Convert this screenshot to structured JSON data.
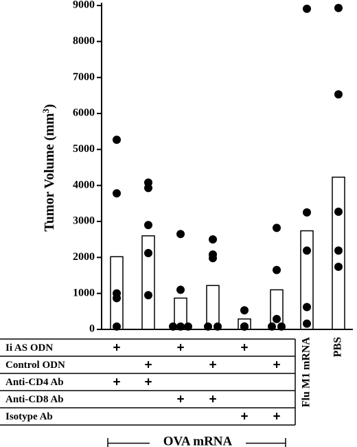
{
  "chart_data": {
    "type": "bar",
    "ylabel_main": "Tumor Volume (mm",
    "ylabel_sup": "3",
    "ylabel_close": ")",
    "ylim": [
      0,
      9000
    ],
    "yticks": [
      0,
      1000,
      2000,
      3000,
      4000,
      5000,
      6000,
      7000,
      8000,
      9000
    ],
    "groups": [
      {
        "bar": 2020,
        "points": [
          5270,
          3780,
          1000,
          870,
          80
        ]
      },
      {
        "bar": 2600,
        "points": [
          4080,
          3930,
          2900,
          2120,
          950
        ]
      },
      {
        "bar": 870,
        "points": [
          2650,
          1100,
          80,
          80,
          80
        ]
      },
      {
        "bar": 1220,
        "points": [
          2500,
          2080,
          1980,
          80,
          80
        ]
      },
      {
        "bar": 290,
        "points": [
          530,
          80,
          80,
          80,
          80
        ]
      },
      {
        "bar": 1100,
        "points": [
          2820,
          1650,
          290,
          80,
          80
        ]
      },
      {
        "bar": 2740,
        "points": [
          8910,
          3250,
          2190,
          620,
          160
        ]
      },
      {
        "bar": 4230,
        "points": [
          8930,
          6530,
          3270,
          2190,
          1740
        ]
      }
    ],
    "condition_rows": [
      {
        "label": "Ii AS ODN",
        "marks": [
          true,
          false,
          true,
          false,
          true,
          false
        ]
      },
      {
        "label": "Control ODN",
        "marks": [
          false,
          true,
          false,
          true,
          false,
          true
        ]
      },
      {
        "label": "Anti-CD4 Ab",
        "marks": [
          true,
          true,
          false,
          false,
          false,
          false
        ]
      },
      {
        "label": "Anti-CD8 Ab",
        "marks": [
          false,
          false,
          true,
          true,
          false,
          false
        ]
      },
      {
        "label": "Isotype Ab",
        "marks": [
          false,
          false,
          false,
          false,
          true,
          true
        ]
      }
    ],
    "mark_symbol": "+",
    "extra_group_labels": [
      "Flu M1 mRNA",
      "PBS"
    ],
    "bracket_label": "OVA mRNA"
  }
}
